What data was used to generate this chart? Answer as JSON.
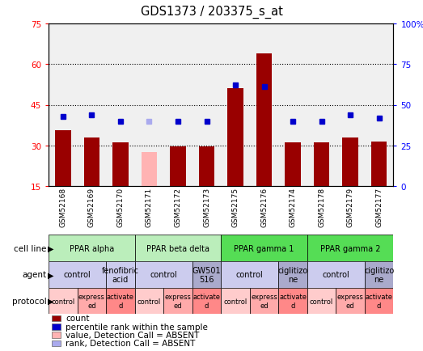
{
  "title": "GDS1373 / 203375_s_at",
  "samples": [
    "GSM52168",
    "GSM52169",
    "GSM52170",
    "GSM52171",
    "GSM52172",
    "GSM52173",
    "GSM52175",
    "GSM52176",
    "GSM52174",
    "GSM52178",
    "GSM52179",
    "GSM52177"
  ],
  "count_values": [
    35.5,
    33.0,
    31.0,
    null,
    29.5,
    29.5,
    51.0,
    64.0,
    31.0,
    31.0,
    33.0,
    31.5
  ],
  "absent_count_values": [
    null,
    null,
    null,
    27.5,
    null,
    null,
    null,
    null,
    null,
    null,
    null,
    null
  ],
  "rank_values": [
    43,
    44,
    40,
    null,
    40,
    40,
    62,
    61,
    40,
    40,
    44,
    42
  ],
  "absent_rank_values": [
    null,
    null,
    null,
    40,
    null,
    null,
    null,
    null,
    null,
    null,
    null,
    null
  ],
  "ylim_left": [
    15,
    75
  ],
  "ylim_right": [
    0,
    100
  ],
  "yticks_left": [
    15,
    30,
    45,
    60,
    75
  ],
  "yticks_right": [
    0,
    25,
    50,
    75,
    100
  ],
  "bar_color": "#990000",
  "absent_bar_color": "#ffb3b3",
  "rank_color": "#0000cc",
  "absent_rank_color": "#aaaaee",
  "chart_bg": "#f0f0f0",
  "cell_lines": [
    {
      "label": "PPAR alpha",
      "start": 0,
      "end": 3,
      "color": "#bbeebb"
    },
    {
      "label": "PPAR beta delta",
      "start": 3,
      "end": 6,
      "color": "#bbeebb"
    },
    {
      "label": "PPAR gamma 1",
      "start": 6,
      "end": 9,
      "color": "#55dd55"
    },
    {
      "label": "PPAR gamma 2",
      "start": 9,
      "end": 12,
      "color": "#55dd55"
    }
  ],
  "agents": [
    {
      "label": "control",
      "start": 0,
      "end": 2,
      "color": "#ccccee"
    },
    {
      "label": "fenofibric\nacid",
      "start": 2,
      "end": 3,
      "color": "#ccccee"
    },
    {
      "label": "control",
      "start": 3,
      "end": 5,
      "color": "#ccccee"
    },
    {
      "label": "GW501\n516",
      "start": 5,
      "end": 6,
      "color": "#aaaacc"
    },
    {
      "label": "control",
      "start": 6,
      "end": 8,
      "color": "#ccccee"
    },
    {
      "label": "ciglitizo\nne",
      "start": 8,
      "end": 9,
      "color": "#aaaacc"
    },
    {
      "label": "control",
      "start": 9,
      "end": 11,
      "color": "#ccccee"
    },
    {
      "label": "ciglitizo\nne",
      "start": 11,
      "end": 12,
      "color": "#aaaacc"
    }
  ],
  "protocols": [
    {
      "label": "control",
      "start": 0,
      "end": 1,
      "color": "#ffcccc"
    },
    {
      "label": "express\ned",
      "start": 1,
      "end": 2,
      "color": "#ffaaaa"
    },
    {
      "label": "activate\nd",
      "start": 2,
      "end": 3,
      "color": "#ff8888"
    },
    {
      "label": "control",
      "start": 3,
      "end": 4,
      "color": "#ffcccc"
    },
    {
      "label": "express\ned",
      "start": 4,
      "end": 5,
      "color": "#ffaaaa"
    },
    {
      "label": "activate\nd",
      "start": 5,
      "end": 6,
      "color": "#ff8888"
    },
    {
      "label": "control",
      "start": 6,
      "end": 7,
      "color": "#ffcccc"
    },
    {
      "label": "express\ned",
      "start": 7,
      "end": 8,
      "color": "#ffaaaa"
    },
    {
      "label": "activate\nd",
      "start": 8,
      "end": 9,
      "color": "#ff8888"
    },
    {
      "label": "control",
      "start": 9,
      "end": 10,
      "color": "#ffcccc"
    },
    {
      "label": "express\ned",
      "start": 10,
      "end": 11,
      "color": "#ffaaaa"
    },
    {
      "label": "activate\nd",
      "start": 11,
      "end": 12,
      "color": "#ff8888"
    }
  ],
  "row_labels": [
    "cell line",
    "agent",
    "protocol"
  ],
  "legend_items": [
    {
      "label": "count",
      "color": "#990000"
    },
    {
      "label": "percentile rank within the sample",
      "color": "#0000cc"
    },
    {
      "label": "value, Detection Call = ABSENT",
      "color": "#ffb3b3"
    },
    {
      "label": "rank, Detection Call = ABSENT",
      "color": "#aaaaee"
    }
  ]
}
